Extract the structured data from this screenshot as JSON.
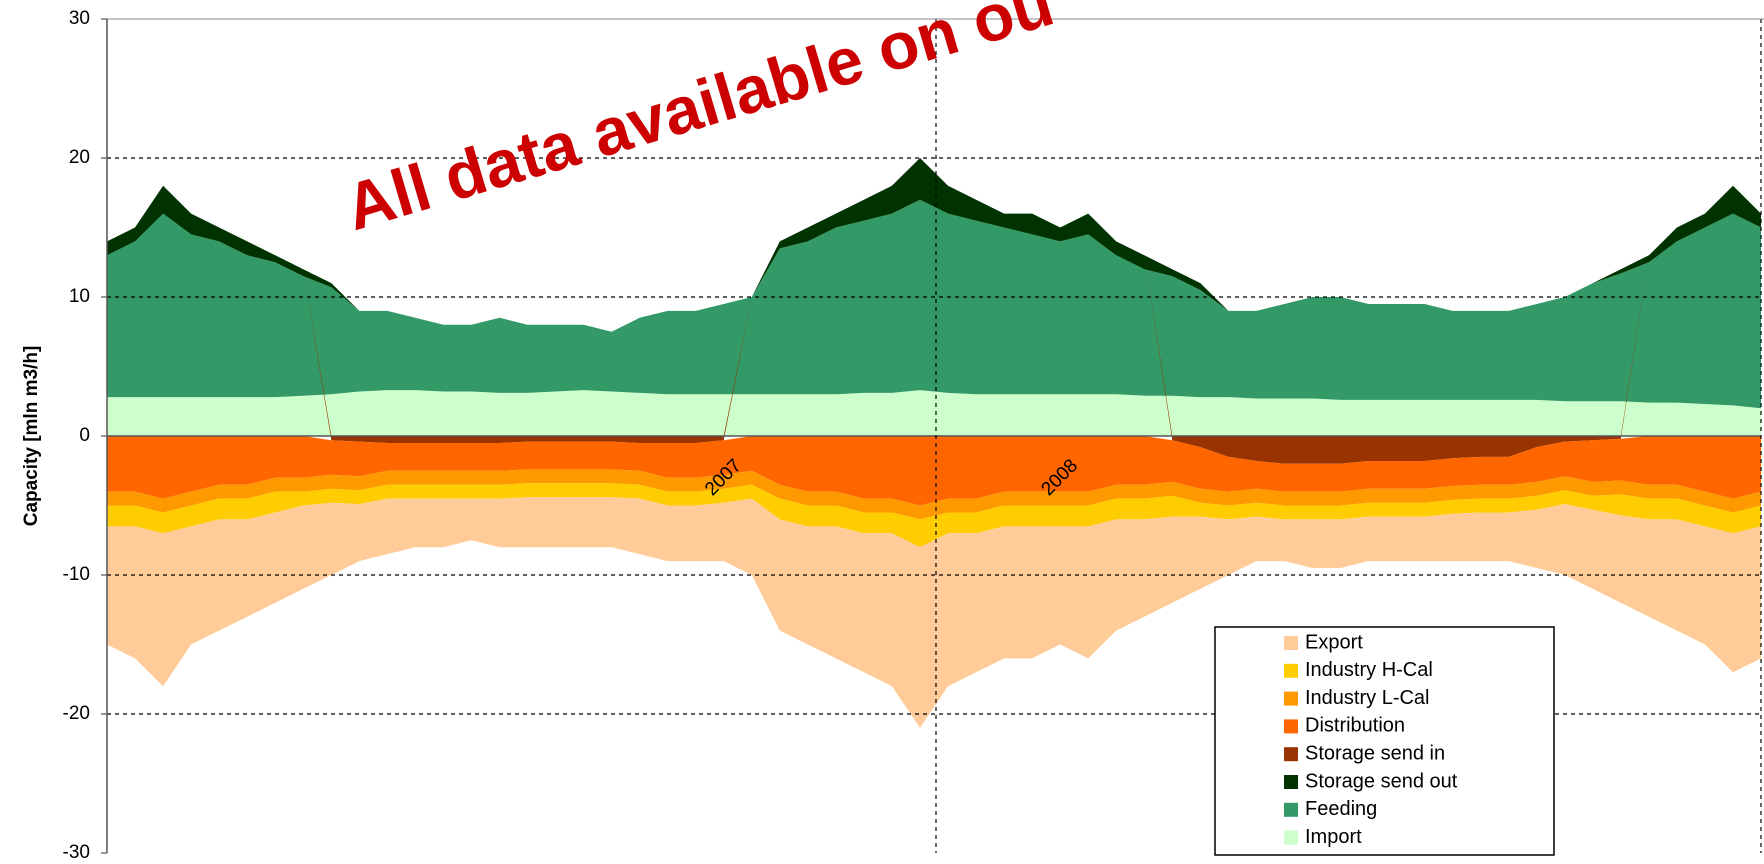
{
  "chart_data": {
    "type": "stacked-area",
    "annotation": "All data available on ou",
    "y_label": "Capacity [mln m3/h]",
    "categories": [
      null,
      null,
      null,
      null,
      null,
      null,
      null,
      null,
      null,
      null,
      null,
      null,
      null,
      null,
      null,
      null,
      null,
      null,
      null,
      null,
      null,
      null,
      "2007",
      null,
      null,
      null,
      null,
      null,
      null,
      null,
      null,
      null,
      null,
      null,
      "2008",
      null,
      null,
      null,
      null,
      null,
      null,
      null,
      null,
      null,
      null,
      null,
      null,
      null,
      null,
      null,
      null,
      null,
      null,
      null,
      null,
      null,
      null,
      null,
      null,
      null
    ],
    "ylim": [
      -30,
      30
    ],
    "yticks": [
      -30,
      -20,
      -10,
      0,
      10,
      20,
      30
    ],
    "grid": true,
    "series": [
      {
        "name": "Export",
        "color": "#ffcc99",
        "values": [
          -8.5,
          -9.5,
          -11,
          -8.5,
          -8,
          -7,
          -6.5,
          -6,
          -5.2,
          -4.1,
          -4,
          -3.5,
          -3.5,
          -3,
          -3.5,
          -3.6,
          -3.6,
          -3.6,
          -3.6,
          -4,
          -4,
          -4,
          -4.2,
          -5.5,
          -8,
          -8.5,
          -9.5,
          -10,
          -11,
          -13,
          -11,
          -10,
          -9.5,
          -9.5,
          -8.5,
          -9.5,
          -8,
          -7,
          -6.2,
          -5.2,
          -4,
          -3.2,
          -3,
          -3.5,
          -3.5,
          -3.2,
          -3.2,
          -3.2,
          -3.4,
          -3.5,
          -3.5,
          -4.2,
          -5.1,
          -5.7,
          -6.3,
          -7,
          -8,
          -8.5,
          -10,
          -9.5
        ]
      },
      {
        "name": "Industry H-Cal",
        "color": "#ffcc00",
        "values": [
          -1.5,
          -1.5,
          -1.5,
          -1.5,
          -1.5,
          -1.5,
          -1.5,
          -1,
          -1,
          -1,
          -1,
          -1,
          -1,
          -1,
          -1,
          -1,
          -1,
          -1,
          -1,
          -1,
          -1,
          -1,
          -1,
          -1,
          -1.5,
          -1.5,
          -1.5,
          -1.5,
          -1.5,
          -2,
          -1.5,
          -1.5,
          -1.5,
          -1.5,
          -1.5,
          -1.5,
          -1.5,
          -1.5,
          -1.5,
          -1,
          -1,
          -1,
          -1,
          -1,
          -1,
          -1,
          -1,
          -1,
          -1,
          -1,
          -1,
          -1,
          -1,
          -1,
          -1.5,
          -1.5,
          -1.5,
          -1.5,
          -1.5,
          -1.5
        ]
      },
      {
        "name": "Industry L-Cal",
        "color": "#ff9900",
        "values": [
          -1,
          -1,
          -1,
          -1,
          -1,
          -1,
          -1,
          -1,
          -1,
          -1,
          -1,
          -1,
          -1,
          -1,
          -1,
          -1,
          -1,
          -1,
          -1,
          -1,
          -1,
          -1,
          -1,
          -1,
          -1,
          -1,
          -1,
          -1,
          -1,
          -1,
          -1,
          -1,
          -1,
          -1,
          -1,
          -1,
          -1,
          -1,
          -1,
          -1,
          -1,
          -1,
          -1,
          -1,
          -1,
          -1,
          -1,
          -1,
          -1,
          -1,
          -1,
          -1,
          -1,
          -1,
          -1,
          -1,
          -1,
          -1,
          -1,
          -1
        ]
      },
      {
        "name": "Distribution",
        "color": "#ff6600",
        "values": [
          -4,
          -4,
          -4.5,
          -4,
          -3.5,
          -3.5,
          -3,
          -3,
          -2.5,
          -2.5,
          -2,
          -2,
          -2,
          -2,
          -2,
          -2,
          -2,
          -2,
          -2,
          -2,
          -2.5,
          -2.5,
          -2.5,
          -2.5,
          -3.5,
          -4,
          -4,
          -4.5,
          -4.5,
          -5,
          -4.5,
          -4.5,
          -4,
          -4,
          -4,
          -4,
          -3.5,
          -3.5,
          -3,
          -3,
          -2.5,
          -2,
          -2,
          -2,
          -2,
          -2,
          -2,
          -2,
          -2,
          -2,
          -2,
          -2.5,
          -2.5,
          -3,
          -3,
          -3.5,
          -3.5,
          -4,
          -4.5,
          -4
        ]
      },
      {
        "name": "Storage send in",
        "color": "#993300",
        "values": [
          0,
          0,
          0,
          0,
          0,
          0,
          0,
          0,
          -0.3,
          -0.4,
          -0.5,
          -0.5,
          -0.5,
          -0.5,
          -0.5,
          -0.4,
          -0.4,
          -0.4,
          -0.4,
          -0.5,
          -0.5,
          -0.5,
          -0.3,
          0,
          0,
          0,
          0,
          0,
          0,
          0,
          0,
          0,
          0,
          0,
          0,
          0,
          0,
          0,
          -0.3,
          -0.8,
          -1.5,
          -1.8,
          -2,
          -2,
          -2,
          -1.8,
          -1.8,
          -1.8,
          -1.6,
          -1.5,
          -1.5,
          -0.8,
          -0.4,
          -0.3,
          -0.2,
          0,
          0,
          0,
          0,
          0
        ]
      },
      {
        "name": "Storage send out",
        "color": "#003300",
        "values": [
          1,
          1,
          2,
          1.5,
          1,
          1,
          0.5,
          0.5,
          0.3,
          0,
          0,
          0,
          0,
          0,
          0,
          0,
          0,
          0,
          0,
          0,
          0,
          0,
          0,
          0,
          0.5,
          1,
          1,
          1.5,
          2,
          3,
          2,
          1.5,
          1,
          1.5,
          1,
          1.5,
          1,
          1,
          0.5,
          0.5,
          0,
          0,
          0,
          0,
          0,
          0,
          0,
          0,
          0,
          0,
          0,
          0,
          0,
          0,
          0.3,
          0.5,
          1,
          1,
          2,
          1
        ]
      },
      {
        "name": "Feeding",
        "color": "#339966",
        "values": [
          10.2,
          11.2,
          13.2,
          11.7,
          11.2,
          10.2,
          9.7,
          8.6,
          7.7,
          5.8,
          5.7,
          5.2,
          4.8,
          4.8,
          5.4,
          4.9,
          4.8,
          4.7,
          4.3,
          5.4,
          6,
          6,
          6.5,
          7,
          10.5,
          11,
          12,
          12.4,
          12.9,
          13.7,
          12.9,
          12.5,
          12,
          11.5,
          11,
          11.5,
          10,
          9.1,
          8.6,
          7.7,
          6.2,
          6.3,
          6.8,
          7.3,
          7.4,
          6.9,
          6.9,
          6.9,
          6.4,
          6.4,
          6.4,
          6.9,
          7.5,
          8.5,
          9.2,
          10.1,
          11.6,
          12.7,
          13.8,
          13
        ]
      },
      {
        "name": "Import",
        "color": "#ccffcc",
        "values": [
          2.8,
          2.8,
          2.8,
          2.8,
          2.8,
          2.8,
          2.8,
          2.9,
          3,
          3.2,
          3.3,
          3.3,
          3.2,
          3.2,
          3.1,
          3.1,
          3.2,
          3.3,
          3.2,
          3.1,
          3,
          3,
          3,
          3,
          3,
          3,
          3,
          3.1,
          3.1,
          3.3,
          3.1,
          3,
          3,
          3,
          3,
          3,
          3,
          2.9,
          2.9,
          2.8,
          2.8,
          2.7,
          2.7,
          2.7,
          2.6,
          2.6,
          2.6,
          2.6,
          2.6,
          2.6,
          2.6,
          2.6,
          2.5,
          2.5,
          2.5,
          2.4,
          2.4,
          2.3,
          2.2,
          2
        ]
      }
    ]
  }
}
